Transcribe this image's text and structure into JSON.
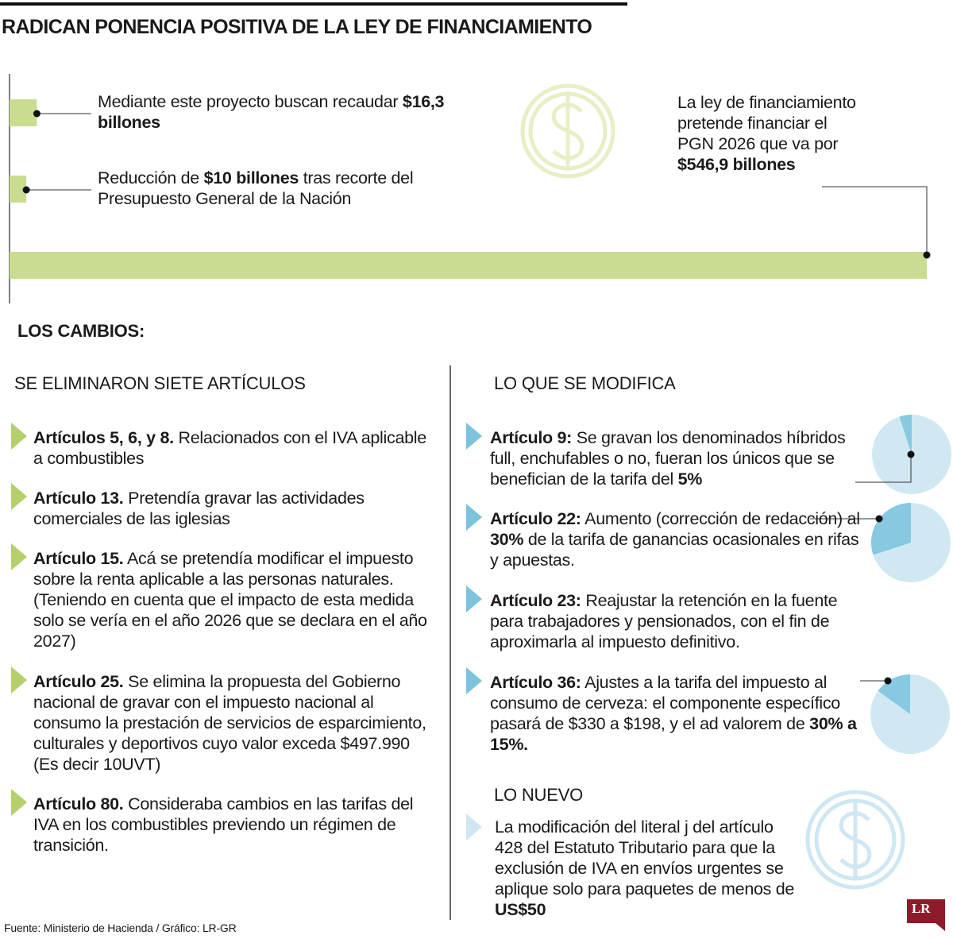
{
  "header": {
    "title": "RADICAN PONENCIA POSITIVA DE LA LEY DE FINANCIAMIENTO"
  },
  "summary": {
    "items": [
      {
        "value": 16.3,
        "text": [
          {
            "text": "Mediante este proyecto buscan recaudar ",
            "bold": false
          },
          {
            "text": "$16,3 billones",
            "bold": true
          }
        ]
      },
      {
        "value": 10,
        "text": [
          {
            "text": "Reducción de ",
            "bold": false
          },
          {
            "text": "$10 billones",
            "bold": true
          },
          {
            "text": " tras recorte del Presupuesto General de la Nación",
            "bold": false
          }
        ]
      }
    ],
    "total": {
      "value": 546.9,
      "text": [
        {
          "text": "La ley de financiamiento pretende financiar el PGN 2026 que va por ",
          "bold": false
        },
        {
          "text": "$546,9 billones",
          "bold": true
        }
      ]
    }
  },
  "changes": {
    "heading": "LOS CAMBIOS:"
  },
  "eliminated": {
    "heading": "SE ELIMINARON SIETE ARTÍCULOS",
    "items": [
      [
        {
          "text": "Artículos 5, 6, y 8.",
          "bold": true
        },
        {
          "text": " Relacionados con el IVA aplicable a combustibles",
          "bold": false
        }
      ],
      [
        {
          "text": "Artículo 13.",
          "bold": true
        },
        {
          "text": " Pretendía gravar las actividades comerciales de las iglesias",
          "bold": false
        }
      ],
      [
        {
          "text": "Artículo 15.",
          "bold": true
        },
        {
          "text": " Acá se pretendía modificar el impuesto sobre la renta aplicable a las personas naturales. (Teniendo en cuenta que el impacto de esta medida solo se vería en el año 2026 que se declara en el año 2027)",
          "bold": false
        }
      ],
      [
        {
          "text": "Artículo 25.",
          "bold": true
        },
        {
          "text": " Se elimina la propuesta del Gobierno nacional de gravar con el impuesto nacional al consumo la prestación de servicios de esparcimiento, culturales y deportivos cuyo valor exceda $497.990 (Es decir 10UVT)",
          "bold": false
        }
      ],
      [
        {
          "text": "Artículo 80.",
          "bold": true
        },
        {
          "text": " Consideraba cambios en las tarifas del IVA en los combustibles previendo un régimen de transición.",
          "bold": false
        }
      ]
    ]
  },
  "modified": {
    "heading": "LO QUE SE MODIFICA",
    "items": [
      {
        "pie": 5,
        "text": [
          {
            "text": "Artículo 9:",
            "bold": true
          },
          {
            "text": " Se gravan los denominados híbridos full, enchufables o no, fueran los únicos que se benefician de la tarifa del ",
            "bold": false
          },
          {
            "text": "5%",
            "bold": true
          }
        ]
      },
      {
        "pie": 30,
        "text": [
          {
            "text": "Artículo 22:",
            "bold": true
          },
          {
            "text": " Aumento (corrección de redacción) al ",
            "bold": false
          },
          {
            "text": "30%",
            "bold": true
          },
          {
            "text": " de la tarifa de ganancias ocasionales en rifas y apuestas.",
            "bold": false
          }
        ]
      },
      {
        "text": [
          {
            "text": "Artículo 23:",
            "bold": true
          },
          {
            "text": " Reajustar la retención en la fuente para trabajadores y pensionados, con el fin de aproximarla al impuesto definitivo.",
            "bold": false
          }
        ]
      },
      {
        "pie": 15,
        "text": [
          {
            "text": "Artículo 36:",
            "bold": true
          },
          {
            "text": " Ajustes a la tarifa del impuesto al consumo de cerveza: el componente específico pasará de $330 a $198, y el ad valorem de ",
            "bold": false
          },
          {
            "text": "30% a 15%.",
            "bold": true
          }
        ]
      }
    ]
  },
  "new": {
    "heading": "LO NUEVO",
    "text": [
      {
        "text": "La modificación del literal j del artículo 428 del Estatuto Tributario para que la exclusión de IVA en envíos urgentes se aplique solo para paquetes de menos de ",
        "bold": false
      },
      {
        "text": "US$50",
        "bold": true
      }
    ]
  },
  "source": "Fuente: Ministerio de Hacienda / Gráfico: LR-GR",
  "logo": "LR"
}
